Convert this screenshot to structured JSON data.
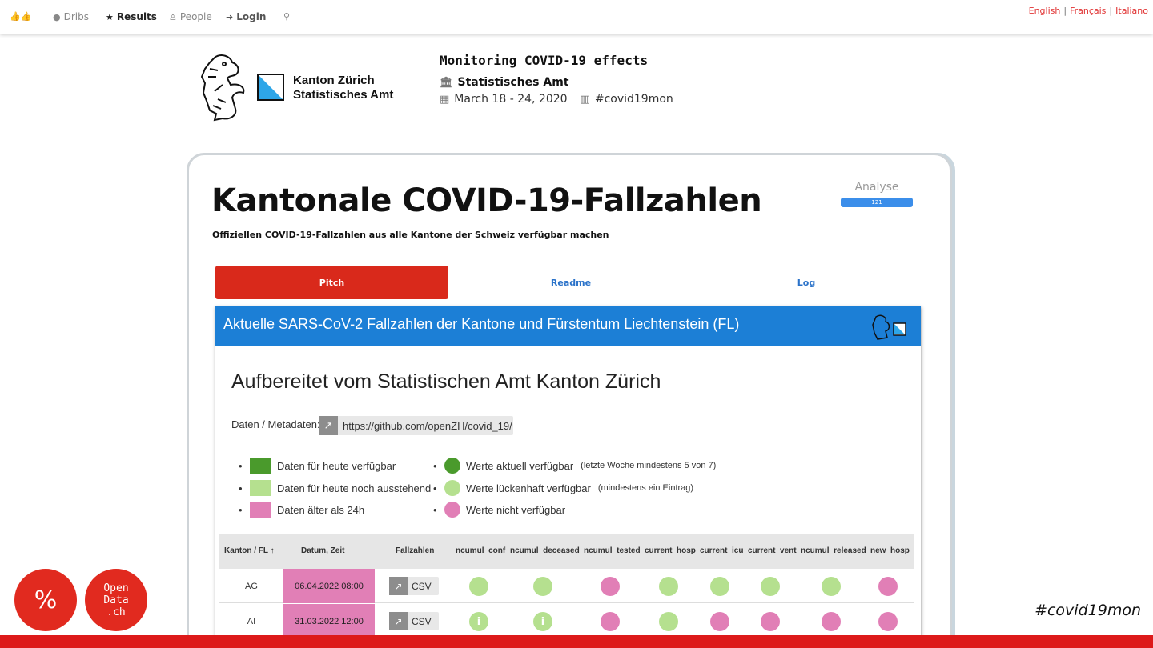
{
  "nav": {
    "items": [
      {
        "icon": "thumbs-up-icon",
        "label": ""
      },
      {
        "icon": "comment-icon",
        "label": "Dribs"
      },
      {
        "icon": "star-icon",
        "label": "Results"
      },
      {
        "icon": "person-icon",
        "label": "People"
      },
      {
        "icon": "sign-in-icon",
        "label": "Login"
      },
      {
        "icon": "search-icon",
        "label": ""
      }
    ],
    "languages": [
      "English",
      "Français",
      "Italiano"
    ]
  },
  "header": {
    "org_logo_line1": "Kanton Zürich",
    "org_logo_line2": "Statistisches Amt",
    "event_title": "Monitoring COVID-19 effects",
    "event_org": "Statistisches Amt",
    "event_dates": "March 18 - 24, 2020",
    "event_hashtag": "#covid19mon"
  },
  "project": {
    "title": "Kantonale COVID-19-Fallzahlen",
    "subtitle": "Offiziellen COVID-19-Fallzahlen aus alle Kantone der Schweiz verfügbar machen",
    "analyse_label": "Analyse",
    "analyse_value": "121",
    "analyse_progress": 1.0,
    "tabs": [
      "Pitch",
      "Readme",
      "Log"
    ]
  },
  "embed": {
    "bar_title": "Aktuelle SARS-CoV-2 Fallzahlen der Kantone und Fürstentum Liechtenstein (FL)",
    "heading": "Aufbereitet vom Statistischen Amt Kanton Zürich",
    "meta_label": "Daten / Metadaten:",
    "meta_link": "https://github.com/openZH/covid_19/",
    "legend_left": [
      {
        "label": "Daten für heute verfügbar",
        "color": "#4a9a2c"
      },
      {
        "label": "Daten für heute noch ausstehend",
        "color": "#b5e08f"
      },
      {
        "label": "Daten älter als 24h",
        "color": "#e17fb6"
      }
    ],
    "legend_right": [
      {
        "label": "Werte aktuell verfügbar",
        "note": "(letzte Woche mindestens 5 von 7)",
        "color": "#4a9a2c"
      },
      {
        "label": "Werte lückenhaft verfügbar",
        "note": "(mindestens ein Eintrag)",
        "color": "#b5e08f"
      },
      {
        "label": "Werte nicht verfügbar",
        "note": "",
        "color": "#e17fb6"
      }
    ],
    "table": {
      "headers": [
        "Kanton / FL ↑",
        "Datum, Zeit",
        "Fallzahlen",
        "ncumul_conf",
        "ncumul_deceased",
        "ncumul_tested",
        "current_hosp",
        "current_icu",
        "current_vent",
        "ncumul_released",
        "new_hosp"
      ],
      "csv_label": "CSV",
      "rows": [
        {
          "kanton": "AG",
          "date": "06.04.2022 08:00",
          "cells": [
            "light",
            "light",
            "pink",
            "light",
            "light",
            "light",
            "light",
            "pink"
          ]
        },
        {
          "kanton": "AI",
          "date": "31.03.2022 12:00",
          "cells": [
            "light-i",
            "light-i",
            "pink",
            "light",
            "pink",
            "pink",
            "pink",
            "pink"
          ]
        }
      ]
    }
  },
  "footer": {
    "logo_opendata_glyph": "%",
    "logo_opendata_text": "Open\nData\n.ch",
    "hashtag": "#covid19mon"
  },
  "colors": {
    "accent_red": "#d9291b",
    "link_blue": "#2a72c9",
    "embed_blue": "#1c7fd6",
    "light_green": "#b5e08f",
    "dark_green": "#4a9a2c",
    "pink": "#e17fb6"
  }
}
